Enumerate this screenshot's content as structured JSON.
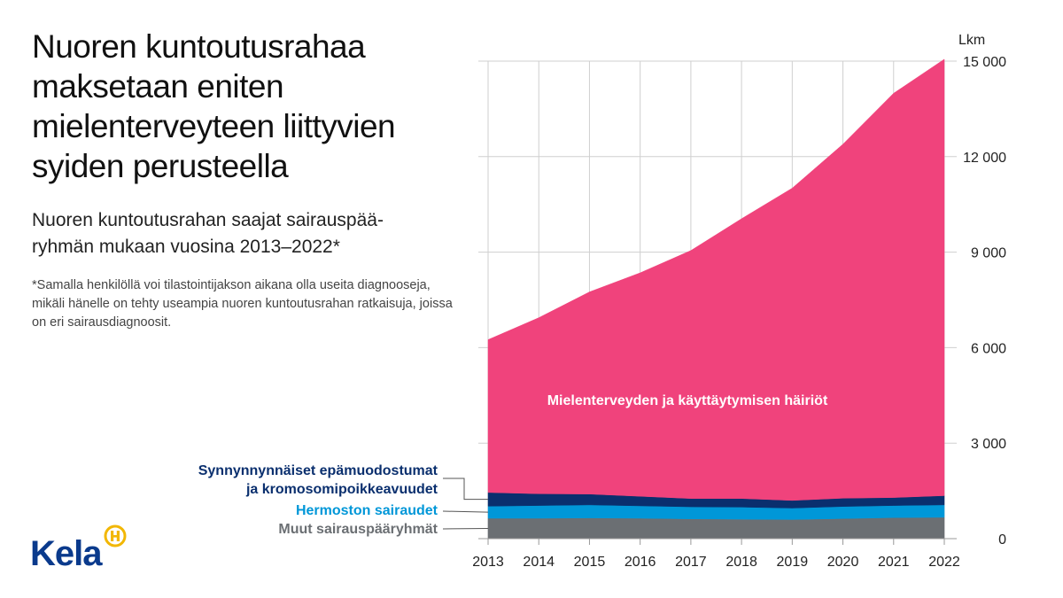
{
  "header": {
    "title": "Nuoren kuntoutusrahaa maksetaan eniten mielenterveyteen liittyvien syiden perusteella",
    "subtitle": "Nuoren kuntoutusrahan saajat sairauspää­ryhmän mukaan vuosina 2013–2022*",
    "footnote": "*Samalla henkilöllä voi tilastointijakson aikana olla useita diagnooseja, mikäli hänelle on tehty useampia nuoren kuntoutusrahan ratkaisuja, joissa on eri sairausdiagnoosit."
  },
  "logo": {
    "text": "Kela",
    "icon": "kela-emblem-icon",
    "color": "#0a3a8c",
    "accent": "#f2b705"
  },
  "chart_data": {
    "type": "area",
    "stacked": true,
    "ylabel": "Lkm",
    "ylim": [
      0,
      15000
    ],
    "y_ticks": [
      0,
      3000,
      6000,
      9000,
      12000,
      15000
    ],
    "y_tick_labels": [
      "0",
      "3 000",
      "6 000",
      "9 000",
      "12 000",
      "15 000"
    ],
    "x": [
      2013,
      2014,
      2015,
      2016,
      2017,
      2018,
      2019,
      2020,
      2021,
      2022
    ],
    "x_tick_labels": [
      "2013",
      "2014",
      "2015",
      "2016",
      "2017",
      "2018",
      "2019",
      "2020",
      "2021",
      "2022"
    ],
    "grid": true,
    "series": [
      {
        "name": "Muut sairauspääryhmät",
        "color": "#6b6f73",
        "values": [
          640,
          640,
          650,
          640,
          620,
          610,
          600,
          630,
          660,
          670
        ]
      },
      {
        "name": "Hermoston sairaudet",
        "color": "#0097d8",
        "values": [
          380,
          400,
          410,
          390,
          380,
          380,
          360,
          380,
          380,
          390
        ]
      },
      {
        "name": "Synnynnynnäiset epämuodostumat ja kromosomipoikkeavuudet",
        "color": "#0a2f6e",
        "values": [
          430,
          370,
          340,
          300,
          260,
          270,
          240,
          260,
          250,
          290
        ]
      },
      {
        "name": "Mielenterveyden ja käyttäytymisen häiriöt",
        "color": "#f0437c",
        "values": [
          4800,
          5530,
          6350,
          7020,
          7790,
          8790,
          9810,
          11120,
          12700,
          13710
        ]
      }
    ],
    "labels": [
      {
        "lines": [
          "Mielenterveyden ja käyttäytymisen häiriöt"
        ],
        "color": "#ffffff"
      },
      {
        "lines": [
          "Synnynnynnäiset epämuodostumat",
          "ja kromosomipoikkeavuudet"
        ],
        "color": "#0a2f6e"
      },
      {
        "lines": [
          "Hermoston sairaudet"
        ],
        "color": "#0097d8"
      },
      {
        "lines": [
          "Muut sairauspääryhmät"
        ],
        "color": "#6b6f73"
      }
    ]
  }
}
